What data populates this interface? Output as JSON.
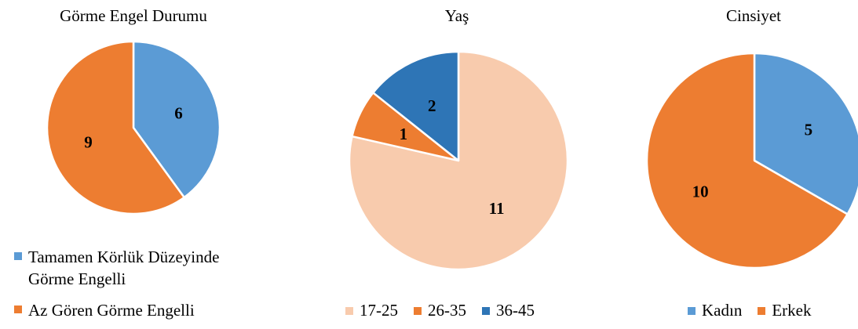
{
  "chart_data": [
    {
      "type": "pie",
      "title": "Görme Engel Durumu",
      "categories": [
        "Tamamen Körlük Düzeyinde Görme Engelli",
        "Az Gören Görme Engelli"
      ],
      "values": [
        6,
        9
      ],
      "colors": [
        "#5B9BD5",
        "#ED7D31"
      ],
      "data_labels": [
        "6",
        "9"
      ],
      "legend_placement": "bottom-left",
      "legend_lines": [
        [
          "Tamamen Körlük Düzeyinde",
          "Görme Engelli"
        ],
        [
          "Az Gören Görme Engelli"
        ]
      ]
    },
    {
      "type": "pie",
      "title": "Yaş",
      "categories": [
        "17-25",
        "26-35",
        "36-45"
      ],
      "values": [
        11,
        1,
        2
      ],
      "colors": [
        "#F8CBAD",
        "#ED7D31",
        "#2E75B6"
      ],
      "data_labels": [
        "11",
        "1",
        "2"
      ],
      "legend_placement": "bottom"
    },
    {
      "type": "pie",
      "title": "Cinsiyet",
      "categories": [
        "Kadın",
        "Erkek"
      ],
      "values": [
        5,
        10
      ],
      "colors": [
        "#5B9BD5",
        "#ED7D31"
      ],
      "data_labels": [
        "5",
        "10"
      ],
      "legend_placement": "bottom"
    }
  ]
}
